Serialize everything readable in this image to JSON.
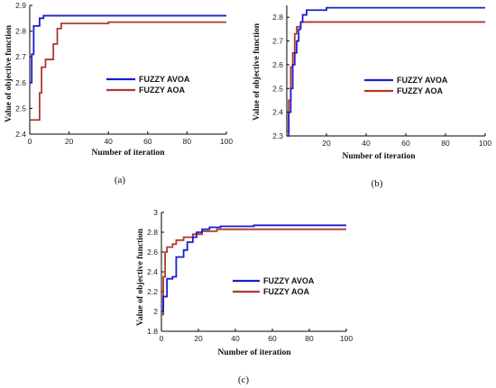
{
  "colors": {
    "avoa": "#1d1dcc",
    "aoa": "#b0392b",
    "axis": "#000000"
  },
  "chart_data": [
    {
      "type": "line",
      "caption": "(a)",
      "xlabel": "Number of iteration",
      "ylabel": "Value of objective function",
      "xlim": [
        0,
        100
      ],
      "ylim": [
        2.4,
        2.9
      ],
      "xticks": [
        "0",
        "20",
        "40",
        "60",
        "80",
        "100"
      ],
      "yticks": [
        "2.4",
        "2.5",
        "2.6",
        "2.7",
        "2.8",
        "2.9"
      ],
      "legend_position": "center-right",
      "series": [
        {
          "name": "FUZZY AVOA",
          "color": "#1d1dcc",
          "x": [
            0,
            1,
            1,
            2,
            2,
            5,
            5,
            7,
            7,
            100
          ],
          "y": [
            2.6,
            2.6,
            2.71,
            2.71,
            2.82,
            2.82,
            2.85,
            2.85,
            2.86,
            2.86
          ]
        },
        {
          "name": "FUZZY AOA",
          "color": "#b0392b",
          "x": [
            0,
            5,
            5,
            6,
            6,
            8,
            8,
            12,
            12,
            14,
            14,
            16,
            16,
            40,
            40,
            100
          ],
          "y": [
            2.455,
            2.455,
            2.56,
            2.56,
            2.66,
            2.66,
            2.69,
            2.69,
            2.75,
            2.75,
            2.81,
            2.81,
            2.83,
            2.83,
            2.835,
            2.835
          ]
        }
      ]
    },
    {
      "type": "line",
      "caption": "(b)",
      "xlabel": "Number of iteration",
      "ylabel": "Value of objective function",
      "xlim": [
        0,
        100
      ],
      "ylim": [
        2.3,
        2.85
      ],
      "xticks": [
        "20",
        "40",
        "60",
        "80",
        "100"
      ],
      "yticks": [
        "2.3",
        "2.4",
        "2.5",
        "2.6",
        "2.7",
        "2.8"
      ],
      "legend_position": "center-right",
      "series": [
        {
          "name": "FUZZY AVOA",
          "color": "#1d1dcc",
          "x": [
            0,
            1,
            1,
            2,
            2,
            3,
            3,
            4,
            4,
            5,
            5,
            6,
            6,
            7,
            7,
            8,
            8,
            10,
            10,
            20,
            20,
            100
          ],
          "y": [
            2.3,
            2.3,
            2.4,
            2.4,
            2.5,
            2.5,
            2.6,
            2.6,
            2.65,
            2.65,
            2.7,
            2.7,
            2.75,
            2.75,
            2.78,
            2.78,
            2.81,
            2.81,
            2.83,
            2.83,
            2.84,
            2.84
          ]
        },
        {
          "name": "FUZZY AOA",
          "color": "#b0392b",
          "x": [
            0,
            1,
            1,
            2,
            2,
            3,
            3,
            4,
            4,
            5,
            5,
            7,
            7,
            100
          ],
          "y": [
            2.32,
            2.32,
            2.45,
            2.45,
            2.59,
            2.59,
            2.65,
            2.65,
            2.73,
            2.73,
            2.76,
            2.76,
            2.78,
            2.78
          ]
        }
      ]
    },
    {
      "type": "line",
      "caption": "(c)",
      "xlabel": "Number of iteration",
      "ylabel": "Value of objective function",
      "xlim": [
        0,
        100
      ],
      "ylim": [
        1.8,
        3.0
      ],
      "xticks": [
        "0",
        "20",
        "40",
        "60",
        "80",
        "100"
      ],
      "yticks": [
        "1.8",
        "2",
        "2.2",
        "2.4",
        "2.6",
        "2.8",
        "3"
      ],
      "legend_position": "center-right",
      "series": [
        {
          "name": "FUZZY AVOA",
          "color": "#1d1dcc",
          "x": [
            0,
            1,
            1,
            3,
            3,
            6,
            6,
            8,
            8,
            12,
            12,
            14,
            14,
            17,
            17,
            19,
            19,
            22,
            22,
            26,
            26,
            32,
            32,
            50,
            50,
            100
          ],
          "y": [
            2.0,
            2.0,
            2.15,
            2.15,
            2.33,
            2.33,
            2.35,
            2.35,
            2.55,
            2.55,
            2.62,
            2.62,
            2.7,
            2.7,
            2.75,
            2.75,
            2.8,
            2.8,
            2.83,
            2.83,
            2.85,
            2.85,
            2.86,
            2.86,
            2.87,
            2.87
          ]
        },
        {
          "name": "FUZZY AOA",
          "color": "#b0392b",
          "x": [
            0,
            1,
            1,
            2,
            2,
            3,
            3,
            6,
            6,
            8,
            8,
            12,
            12,
            17,
            17,
            22,
            22,
            30,
            30,
            100
          ],
          "y": [
            1.97,
            1.97,
            2.35,
            2.35,
            2.6,
            2.6,
            2.65,
            2.65,
            2.68,
            2.68,
            2.72,
            2.72,
            2.75,
            2.75,
            2.78,
            2.78,
            2.81,
            2.81,
            2.83,
            2.83
          ]
        }
      ]
    }
  ]
}
